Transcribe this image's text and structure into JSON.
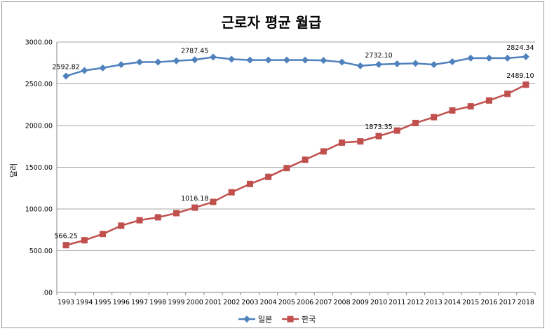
{
  "chart_data": {
    "type": "line",
    "title": "근로자 평균 월급",
    "ylabel": "달러",
    "xlabel": "",
    "ylim": [
      0,
      3000
    ],
    "yticks": [
      ".00",
      "500.00",
      "1000.00",
      "1500.00",
      "2000.00",
      "2500.00",
      "3000.00"
    ],
    "grid": "horizontal",
    "legend": "bottom",
    "categories": [
      "1993",
      "1994",
      "1995",
      "1996",
      "1997",
      "1998",
      "1999",
      "2000",
      "2001",
      "2002",
      "2003",
      "2004",
      "2005",
      "2006",
      "2007",
      "2008",
      "2009",
      "2010",
      "2011",
      "2012",
      "2013",
      "2014",
      "2015",
      "2016",
      "2017",
      "2018"
    ],
    "series": [
      {
        "name": "일본",
        "color": "#4f81bd",
        "marker": "diamond",
        "values": [
          2592.82,
          2660,
          2690,
          2730,
          2760,
          2760,
          2775,
          2787.45,
          2820,
          2795,
          2785,
          2785,
          2785,
          2785,
          2780,
          2760,
          2715,
          2732.1,
          2740,
          2745,
          2730,
          2765,
          2808,
          2808,
          2808,
          2824.34
        ],
        "labels": {
          "0": "2592.82",
          "7": "2787.45",
          "17": "2732.10",
          "25": "2824.34"
        }
      },
      {
        "name": "한국",
        "color": "#c0504d",
        "marker": "square",
        "values": [
          566.25,
          625,
          700,
          800,
          865,
          900,
          950,
          1016.18,
          1085,
          1200,
          1300,
          1385,
          1490,
          1590,
          1690,
          1795,
          1810,
          1873.35,
          1940,
          2030,
          2100,
          2180,
          2230,
          2300,
          2380,
          2489.1
        ],
        "labels": {
          "0": "566.25",
          "7": "1016.18",
          "17": "1873.35",
          "25": "2489.10"
        }
      }
    ]
  }
}
